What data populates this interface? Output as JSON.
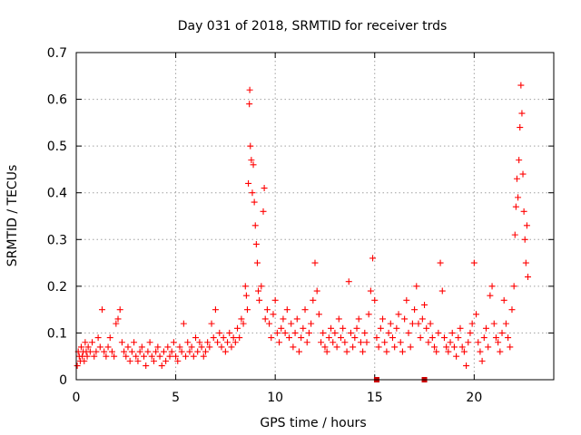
{
  "chart_data": {
    "type": "scatter",
    "title": "Day 031 of 2018, SRMTID for receiver trds",
    "xlabel": "GPS time / hours",
    "ylabel": "SRMTID / TECUs",
    "xlim": [
      0,
      24
    ],
    "ylim": [
      0,
      0.7
    ],
    "xticks": [
      "0",
      "5",
      "10",
      "15",
      "20"
    ],
    "yticks": [
      "0",
      "0.1",
      "0.2",
      "0.3",
      "0.4",
      "0.5",
      "0.6",
      "0.7"
    ],
    "grid": true,
    "marker": "plus",
    "color": "#ff0000",
    "series": [
      {
        "name": "SRMTID",
        "points": [
          [
            0.05,
            0.03
          ],
          [
            0.1,
            0.06
          ],
          [
            0.15,
            0.05
          ],
          [
            0.2,
            0.04
          ],
          [
            0.25,
            0.07
          ],
          [
            0.3,
            0.05
          ],
          [
            0.35,
            0.06
          ],
          [
            0.4,
            0.04
          ],
          [
            0.45,
            0.08
          ],
          [
            0.5,
            0.06
          ],
          [
            0.55,
            0.05
          ],
          [
            0.6,
            0.07
          ],
          [
            0.7,
            0.06
          ],
          [
            0.8,
            0.08
          ],
          [
            0.9,
            0.05
          ],
          [
            1.0,
            0.06
          ],
          [
            1.1,
            0.09
          ],
          [
            1.2,
            0.07
          ],
          [
            1.3,
            0.15
          ],
          [
            1.4,
            0.06
          ],
          [
            1.5,
            0.05
          ],
          [
            1.6,
            0.07
          ],
          [
            1.7,
            0.09
          ],
          [
            1.8,
            0.06
          ],
          [
            1.9,
            0.05
          ],
          [
            2.0,
            0.12
          ],
          [
            2.1,
            0.13
          ],
          [
            2.2,
            0.15
          ],
          [
            2.3,
            0.08
          ],
          [
            2.4,
            0.06
          ],
          [
            2.5,
            0.05
          ],
          [
            2.6,
            0.07
          ],
          [
            2.7,
            0.04
          ],
          [
            2.8,
            0.06
          ],
          [
            2.9,
            0.08
          ],
          [
            3.0,
            0.05
          ],
          [
            3.1,
            0.04
          ],
          [
            3.2,
            0.06
          ],
          [
            3.3,
            0.07
          ],
          [
            3.4,
            0.05
          ],
          [
            3.5,
            0.03
          ],
          [
            3.6,
            0.06
          ],
          [
            3.7,
            0.08
          ],
          [
            3.8,
            0.05
          ],
          [
            3.9,
            0.04
          ],
          [
            4.0,
            0.06
          ],
          [
            4.1,
            0.07
          ],
          [
            4.2,
            0.05
          ],
          [
            4.3,
            0.03
          ],
          [
            4.4,
            0.06
          ],
          [
            4.5,
            0.04
          ],
          [
            4.6,
            0.07
          ],
          [
            4.7,
            0.05
          ],
          [
            4.8,
            0.06
          ],
          [
            4.9,
            0.08
          ],
          [
            5.0,
            0.05
          ],
          [
            5.1,
            0.04
          ],
          [
            5.2,
            0.07
          ],
          [
            5.3,
            0.06
          ],
          [
            5.4,
            0.12
          ],
          [
            5.5,
            0.05
          ],
          [
            5.6,
            0.08
          ],
          [
            5.7,
            0.06
          ],
          [
            5.8,
            0.07
          ],
          [
            5.9,
            0.05
          ],
          [
            6.0,
            0.09
          ],
          [
            6.1,
            0.06
          ],
          [
            6.2,
            0.08
          ],
          [
            6.3,
            0.07
          ],
          [
            6.4,
            0.05
          ],
          [
            6.5,
            0.06
          ],
          [
            6.6,
            0.08
          ],
          [
            6.7,
            0.07
          ],
          [
            6.8,
            0.12
          ],
          [
            6.9,
            0.09
          ],
          [
            7.0,
            0.15
          ],
          [
            7.1,
            0.08
          ],
          [
            7.2,
            0.1
          ],
          [
            7.3,
            0.07
          ],
          [
            7.4,
            0.09
          ],
          [
            7.5,
            0.06
          ],
          [
            7.6,
            0.08
          ],
          [
            7.7,
            0.1
          ],
          [
            7.8,
            0.07
          ],
          [
            7.9,
            0.09
          ],
          [
            8.0,
            0.08
          ],
          [
            8.1,
            0.11
          ],
          [
            8.2,
            0.09
          ],
          [
            8.3,
            0.13
          ],
          [
            8.4,
            0.12
          ],
          [
            8.5,
            0.2
          ],
          [
            8.55,
            0.18
          ],
          [
            8.6,
            0.15
          ],
          [
            8.65,
            0.42
          ],
          [
            8.7,
            0.59
          ],
          [
            8.72,
            0.62
          ],
          [
            8.75,
            0.5
          ],
          [
            8.8,
            0.47
          ],
          [
            8.85,
            0.4
          ],
          [
            8.9,
            0.46
          ],
          [
            8.95,
            0.38
          ],
          [
            9.0,
            0.33
          ],
          [
            9.05,
            0.29
          ],
          [
            9.1,
            0.25
          ],
          [
            9.15,
            0.19
          ],
          [
            9.2,
            0.17
          ],
          [
            9.3,
            0.2
          ],
          [
            9.4,
            0.36
          ],
          [
            9.45,
            0.41
          ],
          [
            9.5,
            0.13
          ],
          [
            9.6,
            0.15
          ],
          [
            9.7,
            0.12
          ],
          [
            9.8,
            0.09
          ],
          [
            9.9,
            0.14
          ],
          [
            10.0,
            0.17
          ],
          [
            10.1,
            0.1
          ],
          [
            10.2,
            0.08
          ],
          [
            10.3,
            0.11
          ],
          [
            10.4,
            0.13
          ],
          [
            10.5,
            0.1
          ],
          [
            10.6,
            0.15
          ],
          [
            10.7,
            0.09
          ],
          [
            10.8,
            0.12
          ],
          [
            10.9,
            0.07
          ],
          [
            11.0,
            0.1
          ],
          [
            11.1,
            0.13
          ],
          [
            11.2,
            0.06
          ],
          [
            11.3,
            0.09
          ],
          [
            11.4,
            0.11
          ],
          [
            11.5,
            0.15
          ],
          [
            11.6,
            0.08
          ],
          [
            11.7,
            0.1
          ],
          [
            11.8,
            0.12
          ],
          [
            11.9,
            0.17
          ],
          [
            12.0,
            0.25
          ],
          [
            12.1,
            0.19
          ],
          [
            12.2,
            0.14
          ],
          [
            12.3,
            0.08
          ],
          [
            12.4,
            0.1
          ],
          [
            12.5,
            0.07
          ],
          [
            12.6,
            0.06
          ],
          [
            12.7,
            0.09
          ],
          [
            12.8,
            0.11
          ],
          [
            12.9,
            0.08
          ],
          [
            13.0,
            0.1
          ],
          [
            13.1,
            0.07
          ],
          [
            13.2,
            0.13
          ],
          [
            13.3,
            0.09
          ],
          [
            13.4,
            0.11
          ],
          [
            13.5,
            0.08
          ],
          [
            13.6,
            0.06
          ],
          [
            13.7,
            0.21
          ],
          [
            13.8,
            0.1
          ],
          [
            13.9,
            0.07
          ],
          [
            14.0,
            0.09
          ],
          [
            14.1,
            0.11
          ],
          [
            14.2,
            0.13
          ],
          [
            14.3,
            0.08
          ],
          [
            14.4,
            0.06
          ],
          [
            14.5,
            0.1
          ],
          [
            14.6,
            0.08
          ],
          [
            14.7,
            0.14
          ],
          [
            14.8,
            0.19
          ],
          [
            14.9,
            0.26
          ],
          [
            15.0,
            0.17
          ],
          [
            15.1,
            0.09
          ],
          [
            15.2,
            0.07
          ],
          [
            15.3,
            0.11
          ],
          [
            15.4,
            0.13
          ],
          [
            15.5,
            0.08
          ],
          [
            15.6,
            0.06
          ],
          [
            15.7,
            0.1
          ],
          [
            15.8,
            0.12
          ],
          [
            15.9,
            0.09
          ],
          [
            16.0,
            0.07
          ],
          [
            16.1,
            0.11
          ],
          [
            16.2,
            0.14
          ],
          [
            16.3,
            0.08
          ],
          [
            16.4,
            0.06
          ],
          [
            16.5,
            0.13
          ],
          [
            16.6,
            0.17
          ],
          [
            16.7,
            0.1
          ],
          [
            16.8,
            0.07
          ],
          [
            16.9,
            0.12
          ],
          [
            17.0,
            0.15
          ],
          [
            17.1,
            0.2
          ],
          [
            17.2,
            0.12
          ],
          [
            17.3,
            0.09
          ],
          [
            17.4,
            0.13
          ],
          [
            17.5,
            0.16
          ],
          [
            17.6,
            0.11
          ],
          [
            17.7,
            0.08
          ],
          [
            17.8,
            0.12
          ],
          [
            17.9,
            0.09
          ],
          [
            18.0,
            0.07
          ],
          [
            18.1,
            0.06
          ],
          [
            18.2,
            0.1
          ],
          [
            18.3,
            0.25
          ],
          [
            18.4,
            0.19
          ],
          [
            18.5,
            0.09
          ],
          [
            18.6,
            0.07
          ],
          [
            18.7,
            0.06
          ],
          [
            18.8,
            0.08
          ],
          [
            18.9,
            0.1
          ],
          [
            19.0,
            0.07
          ],
          [
            19.1,
            0.05
          ],
          [
            19.2,
            0.09
          ],
          [
            19.3,
            0.11
          ],
          [
            19.4,
            0.07
          ],
          [
            19.5,
            0.06
          ],
          [
            19.6,
            0.03
          ],
          [
            19.7,
            0.08
          ],
          [
            19.8,
            0.1
          ],
          [
            19.9,
            0.12
          ],
          [
            20.0,
            0.25
          ],
          [
            20.1,
            0.14
          ],
          [
            20.2,
            0.08
          ],
          [
            20.3,
            0.06
          ],
          [
            20.4,
            0.04
          ],
          [
            20.5,
            0.09
          ],
          [
            20.6,
            0.11
          ],
          [
            20.7,
            0.07
          ],
          [
            20.8,
            0.18
          ],
          [
            20.9,
            0.2
          ],
          [
            21.0,
            0.12
          ],
          [
            21.1,
            0.09
          ],
          [
            21.2,
            0.08
          ],
          [
            21.3,
            0.06
          ],
          [
            21.4,
            0.1
          ],
          [
            21.5,
            0.17
          ],
          [
            21.6,
            0.12
          ],
          [
            21.7,
            0.09
          ],
          [
            21.8,
            0.07
          ],
          [
            21.9,
            0.15
          ],
          [
            22.0,
            0.2
          ],
          [
            22.05,
            0.31
          ],
          [
            22.1,
            0.37
          ],
          [
            22.15,
            0.43
          ],
          [
            22.2,
            0.39
          ],
          [
            22.25,
            0.47
          ],
          [
            22.3,
            0.54
          ],
          [
            22.35,
            0.63
          ],
          [
            22.4,
            0.57
          ],
          [
            22.45,
            0.44
          ],
          [
            22.5,
            0.36
          ],
          [
            22.55,
            0.3
          ],
          [
            22.6,
            0.25
          ],
          [
            22.65,
            0.33
          ],
          [
            22.7,
            0.22
          ]
        ]
      }
    ],
    "markers": [
      {
        "x": 15.1,
        "y": 0.0
      },
      {
        "x": 17.5,
        "y": 0.0
      }
    ]
  }
}
